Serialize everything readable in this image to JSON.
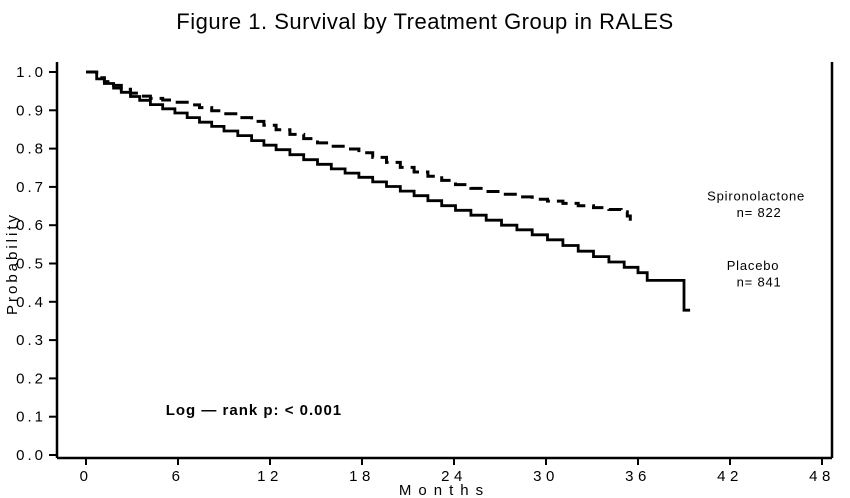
{
  "figure_title": "Figure 1. Survival by Treatment Group in RALES",
  "chart_data": {
    "type": "line",
    "subtype": "kaplan_meier_step",
    "title": "Figure 1. Survival by Treatment Group in RALES",
    "xlabel": "Months",
    "ylabel": "Probability",
    "xlim": [
      0,
      48
    ],
    "ylim": [
      0.0,
      1.0
    ],
    "grid": false,
    "legend_position": "annotations-right-of-curves",
    "xticks": [
      0,
      6,
      12,
      18,
      24,
      30,
      36,
      42,
      48
    ],
    "x_tick_labels": [
      "0",
      "6",
      "12",
      "18",
      "24",
      "30",
      "36",
      "42",
      "48"
    ],
    "yticks": [
      0.0,
      0.1,
      0.2,
      0.3,
      0.4,
      0.5,
      0.6,
      0.7,
      0.8,
      0.9,
      1.0
    ],
    "y_tick_labels": [
      "0.0",
      "0.1",
      "0.2",
      "0.3",
      "0.4",
      "0.5",
      "0.6",
      "0.7",
      "0.8",
      "0.9",
      "1.0"
    ],
    "series": [
      {
        "name": "Spironolactone",
        "n": 822,
        "line_style": "dashed",
        "color": "#000000",
        "points": [
          [
            0,
            1.0
          ],
          [
            0.7,
            0.985
          ],
          [
            1.2,
            0.975
          ],
          [
            1.8,
            0.965
          ],
          [
            2.3,
            0.955
          ],
          [
            2.9,
            0.945
          ],
          [
            3.5,
            0.937
          ],
          [
            4.2,
            0.931
          ],
          [
            5.0,
            0.927
          ],
          [
            5.8,
            0.921
          ],
          [
            6.6,
            0.914
          ],
          [
            7.4,
            0.907
          ],
          [
            8.2,
            0.899
          ],
          [
            9.0,
            0.891
          ],
          [
            9.9,
            0.881
          ],
          [
            10.8,
            0.871
          ],
          [
            11.6,
            0.861
          ],
          [
            12.4,
            0.849
          ],
          [
            13.3,
            0.837
          ],
          [
            14.2,
            0.826
          ],
          [
            15.1,
            0.815
          ],
          [
            16.0,
            0.806
          ],
          [
            16.9,
            0.799
          ],
          [
            17.8,
            0.789
          ],
          [
            18.7,
            0.777
          ],
          [
            19.6,
            0.764
          ],
          [
            20.5,
            0.751
          ],
          [
            21.4,
            0.739
          ],
          [
            22.3,
            0.728
          ],
          [
            23.2,
            0.717
          ],
          [
            24.1,
            0.706
          ],
          [
            25.1,
            0.696
          ],
          [
            26.1,
            0.688
          ],
          [
            27.1,
            0.681
          ],
          [
            28.1,
            0.674
          ],
          [
            29.1,
            0.668
          ],
          [
            30.1,
            0.663
          ],
          [
            31.1,
            0.657
          ],
          [
            32.1,
            0.651
          ],
          [
            33.1,
            0.646
          ],
          [
            34.1,
            0.641
          ],
          [
            34.9,
            0.635
          ],
          [
            35.3,
            0.624
          ],
          [
            35.5,
            0.607
          ]
        ]
      },
      {
        "name": "Placebo",
        "n": 841,
        "line_style": "solid",
        "color": "#000000",
        "points": [
          [
            0,
            1.0
          ],
          [
            0.7,
            0.982
          ],
          [
            1.2,
            0.97
          ],
          [
            1.8,
            0.958
          ],
          [
            2.3,
            0.947
          ],
          [
            2.9,
            0.936
          ],
          [
            3.5,
            0.926
          ],
          [
            4.2,
            0.915
          ],
          [
            5.0,
            0.904
          ],
          [
            5.8,
            0.893
          ],
          [
            6.6,
            0.881
          ],
          [
            7.4,
            0.869
          ],
          [
            8.2,
            0.858
          ],
          [
            9.0,
            0.846
          ],
          [
            9.9,
            0.834
          ],
          [
            10.8,
            0.821
          ],
          [
            11.6,
            0.809
          ],
          [
            12.4,
            0.797
          ],
          [
            13.3,
            0.784
          ],
          [
            14.2,
            0.771
          ],
          [
            15.1,
            0.759
          ],
          [
            16.0,
            0.747
          ],
          [
            16.9,
            0.736
          ],
          [
            17.8,
            0.725
          ],
          [
            18.7,
            0.713
          ],
          [
            19.6,
            0.701
          ],
          [
            20.5,
            0.689
          ],
          [
            21.4,
            0.677
          ],
          [
            22.3,
            0.664
          ],
          [
            23.2,
            0.651
          ],
          [
            24.1,
            0.639
          ],
          [
            25.1,
            0.626
          ],
          [
            26.1,
            0.613
          ],
          [
            27.1,
            0.6
          ],
          [
            28.1,
            0.588
          ],
          [
            29.1,
            0.575
          ],
          [
            30.1,
            0.562
          ],
          [
            31.1,
            0.547
          ],
          [
            32.1,
            0.532
          ],
          [
            33.1,
            0.518
          ],
          [
            34.1,
            0.504
          ],
          [
            35.1,
            0.49
          ],
          [
            36.0,
            0.476
          ],
          [
            36.6,
            0.456
          ],
          [
            39.0,
            0.378
          ],
          [
            39.4,
            0.378
          ]
        ]
      }
    ],
    "annotations": [
      {
        "name": "spironolactone-label",
        "text": "Spironolactone",
        "x": 43.7,
        "y": 0.665,
        "anchor": "middle",
        "size": 13,
        "bold": false
      },
      {
        "name": "spironolactone-n-label",
        "text": "n= 822",
        "x": 43.9,
        "y": 0.622,
        "anchor": "middle",
        "size": 13,
        "bold": false
      },
      {
        "name": "placebo-label",
        "text": "Placebo",
        "x": 43.5,
        "y": 0.483,
        "anchor": "middle",
        "size": 13,
        "bold": false
      },
      {
        "name": "placebo-n-label",
        "text": "n= 841",
        "x": 43.9,
        "y": 0.44,
        "anchor": "middle",
        "size": 13,
        "bold": false
      },
      {
        "name": "logrank-annotation",
        "text": "Log — rank  p:   < 0.001",
        "x": 5.2,
        "y": 0.105,
        "anchor": "start",
        "size": 15,
        "bold": true
      }
    ]
  }
}
